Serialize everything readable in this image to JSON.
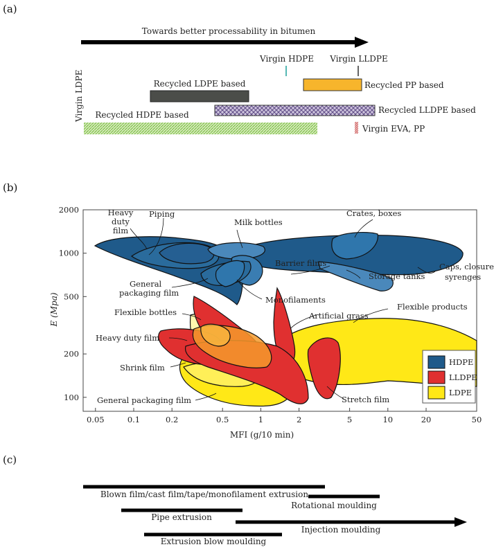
{
  "panels": {
    "a": "(a)",
    "b": "(b)",
    "c": "(c)"
  },
  "panel_a": {
    "arrow_label": "Towards better processability in bitumen",
    "left_vertical_label": "Virgin LDPE",
    "markers": [
      {
        "label": "Virgin HDPE",
        "color": "#2aa6a0"
      },
      {
        "label": "Virgin LLDPE",
        "color": "#222222"
      }
    ],
    "bars": [
      {
        "label": "Recycled PP based",
        "fill": "#f7b52c",
        "pattern": "solid"
      },
      {
        "label": "Recycled LDPE based",
        "fill": "#4b4d49",
        "pattern": "solid"
      },
      {
        "label": "Recycled LLDPE based",
        "fill": "#8f7bb0",
        "pattern": "cross"
      },
      {
        "label": "Recycled HDPE based",
        "fill": "#9fcf6a",
        "pattern": "dots"
      },
      {
        "label": "Virgin EVA, PP",
        "fill": "#d06a6a",
        "pattern": "stripes"
      }
    ]
  },
  "chart_data": {
    "type": "scatter",
    "xlabel": "MFI (g/10 min)",
    "ylabel": "E (Mpa)",
    "x_scale": "log",
    "y_scale": "log",
    "xlim": [
      0.04,
      50
    ],
    "ylim": [
      80,
      2000
    ],
    "x_ticks": [
      0.05,
      0.1,
      0.2,
      0.5,
      1,
      2,
      5,
      10,
      20,
      50
    ],
    "x_tick_labels": [
      "0.05",
      "0.1",
      "0.2",
      "0.5",
      "1",
      "2",
      "5",
      "10",
      "20",
      "50"
    ],
    "y_ticks": [
      100,
      200,
      500,
      1000,
      2000
    ],
    "y_tick_labels": [
      "100",
      "200",
      "500",
      "1000",
      "2000"
    ],
    "legend_position": "bottom-right",
    "legend": [
      {
        "name": "HDPE",
        "color": "#1f5a8a"
      },
      {
        "name": "LLDPE",
        "color": "#e03030"
      },
      {
        "name": "LDPE",
        "color": "#ffe817"
      }
    ],
    "regions": [
      {
        "label": "Heavy duty film",
        "polymer": "HDPE",
        "mfi_range": [
          0.04,
          0.3
        ],
        "e_range": [
          900,
          1500
        ]
      },
      {
        "label": "Piping",
        "polymer": "HDPE",
        "mfi_range": [
          0.1,
          0.6
        ],
        "e_range": [
          900,
          1400
        ]
      },
      {
        "label": "Milk bottles",
        "polymer": "HDPE",
        "mfi_range": [
          0.5,
          1.5
        ],
        "e_range": [
          900,
          1200
        ]
      },
      {
        "label": "Crates, boxes",
        "polymer": "HDPE",
        "mfi_range": [
          4,
          7
        ],
        "e_range": [
          1000,
          1600
        ]
      },
      {
        "label": "Caps, closures, syrenges",
        "polymer": "HDPE",
        "mfi_range": [
          1,
          40
        ],
        "e_range": [
          800,
          1500
        ]
      },
      {
        "label": "Barrier films",
        "polymer": "HDPE",
        "mfi_range": [
          0.7,
          1.3
        ],
        "e_range": [
          700,
          1200
        ]
      },
      {
        "label": "Storage tanks",
        "polymer": "HDPE",
        "mfi_range": [
          2.5,
          7.5
        ],
        "e_range": [
          650,
          900
        ]
      },
      {
        "label": "General packaging film",
        "polymer": "HDPE",
        "mfi_range": [
          0.3,
          1.5
        ],
        "e_range": [
          650,
          1100
        ]
      },
      {
        "label": "Monofilaments",
        "polymer": "HDPE",
        "mfi_range": [
          0.5,
          1
        ],
        "e_range": [
          500,
          1000
        ]
      },
      {
        "label": "Flexible bottles",
        "polymer": "LLDPE",
        "mfi_range": [
          0.25,
          1
        ],
        "e_range": [
          200,
          550
        ]
      },
      {
        "label": "Artificial grass",
        "polymer": "LLDPE",
        "mfi_range": [
          1.2,
          1.9
        ],
        "e_range": [
          220,
          400
        ]
      },
      {
        "label": "Heavy duty film",
        "polymer": "LLDPE",
        "mfi_range": [
          0.18,
          0.8
        ],
        "e_range": [
          190,
          330
        ]
      },
      {
        "label": "Shrink film",
        "polymer": "LLDPE",
        "mfi_range": [
          0.2,
          1.3
        ],
        "e_range": [
          150,
          300
        ]
      },
      {
        "label": "Stretch film",
        "polymer": "LLDPE",
        "mfi_range": [
          2,
          4
        ],
        "e_range": [
          120,
          280
        ]
      },
      {
        "label": "General packaging film",
        "polymer": "LDPE",
        "mfi_range": [
          0.2,
          2.5
        ],
        "e_range": [
          85,
          250
        ]
      },
      {
        "label": "Flexible products",
        "polymer": "LDPE",
        "mfi_range": [
          1.7,
          50
        ],
        "e_range": [
          140,
          360
        ]
      }
    ]
  },
  "panel_c": {
    "processes": [
      {
        "label": "Blown film/cast film/tape/monofilament extrusion"
      },
      {
        "label": "Rotational moulding"
      },
      {
        "label": "Pipe extrusion"
      },
      {
        "label": "Injection moulding"
      },
      {
        "label": "Extrusion blow moulding"
      }
    ]
  }
}
